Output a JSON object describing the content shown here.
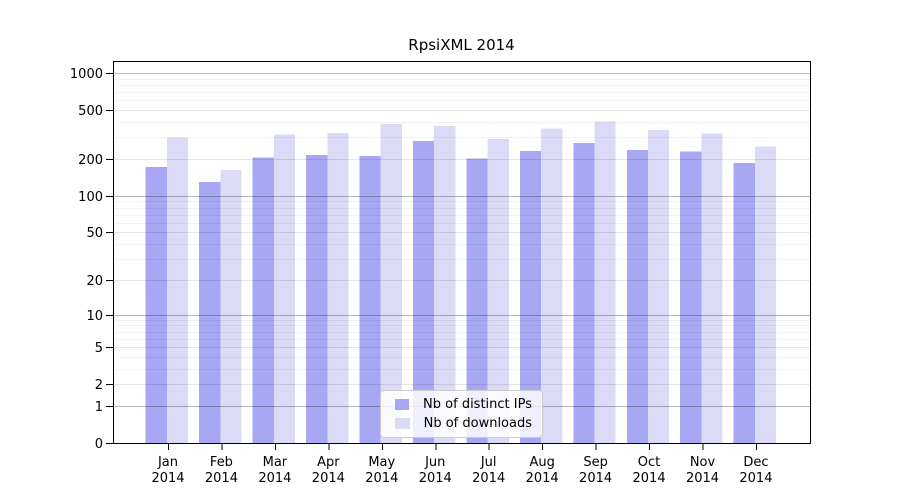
{
  "title": "RpsiXML 2014",
  "colors": {
    "bar_ips": "#a7a7f3",
    "bar_downloads": "#dbdbf8",
    "grid_major": "rgba(0,0,0,0.28)",
    "grid_mid": "rgba(0,0,0,0.10)",
    "grid_minor": "rgba(0,0,0,0.055)",
    "axis": "#000000",
    "background": "#ffffff"
  },
  "chart_data": {
    "type": "bar",
    "title": "RpsiXML 2014",
    "categories": [
      "Jan",
      "Feb",
      "Mar",
      "Apr",
      "May",
      "Jun",
      "Jul",
      "Aug",
      "Sep",
      "Oct",
      "Nov",
      "Dec"
    ],
    "category_year": "2014",
    "series": [
      {
        "name": "Nb of distinct IPs",
        "key": "ips",
        "values": [
          172,
          130,
          205,
          215,
          211,
          280,
          202,
          232,
          270,
          236,
          229,
          186
        ]
      },
      {
        "name": "Nb of downloads",
        "key": "downloads",
        "values": [
          300,
          163,
          315,
          325,
          385,
          370,
          290,
          355,
          405,
          345,
          323,
          253
        ]
      }
    ],
    "yscale": "log1p",
    "yticks": [
      0,
      1,
      2,
      5,
      10,
      20,
      50,
      100,
      200,
      500,
      1000
    ],
    "yticks_power_of_ten": [
      1,
      10,
      100,
      1000
    ],
    "minor_yticks": [
      3,
      4,
      6,
      7,
      8,
      9,
      30,
      40,
      60,
      70,
      80,
      90,
      300,
      400,
      600,
      700,
      800,
      900
    ],
    "ylim": [
      0,
      1250
    ],
    "grid": true,
    "legend_position": "lower-center"
  }
}
